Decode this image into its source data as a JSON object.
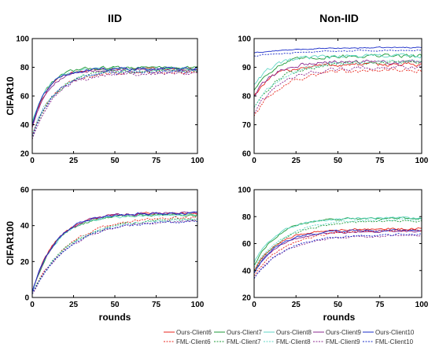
{
  "figure": {
    "col_titles": [
      "IID",
      "Non-IID"
    ],
    "row_labels": [
      "CIFAR10",
      "CIFAR100"
    ],
    "xlabel": "rounds"
  },
  "legend": {
    "entries": [
      {
        "name": "Ours-Client6",
        "color": "#e8261c",
        "dash": "solid"
      },
      {
        "name": "Ours-Client7",
        "color": "#1e9a3a",
        "dash": "solid"
      },
      {
        "name": "Ours-Client8",
        "color": "#5fd6c4",
        "dash": "solid"
      },
      {
        "name": "Ours-Client9",
        "color": "#8b2a8f",
        "dash": "solid"
      },
      {
        "name": "Ours-Client10",
        "color": "#1a2cc8",
        "dash": "solid"
      },
      {
        "name": "FML-Client6",
        "color": "#e8261c",
        "dash": "dashed"
      },
      {
        "name": "FML-Client7",
        "color": "#1e9a3a",
        "dash": "dashed"
      },
      {
        "name": "FML-Client8",
        "color": "#5fd6c4",
        "dash": "dashed"
      },
      {
        "name": "FML-Client9",
        "color": "#8b2a8f",
        "dash": "dashed"
      },
      {
        "name": "FML-Client10",
        "color": "#1a2cc8",
        "dash": "dashed"
      }
    ]
  },
  "chart_data": [
    {
      "type": "line",
      "panel": "IID / CIFAR10",
      "xlim": [
        0,
        100
      ],
      "ylim": [
        20,
        100
      ],
      "xticks": [
        0,
        25,
        50,
        75,
        100
      ],
      "yticks": [
        20,
        40,
        60,
        80,
        100
      ],
      "series": [
        {
          "name": "Ours-Client6",
          "start": 38,
          "plateau": 79,
          "tau": 9,
          "noise": 1.8
        },
        {
          "name": "Ours-Client7",
          "start": 40,
          "plateau": 80,
          "tau": 9,
          "noise": 1.8
        },
        {
          "name": "Ours-Client8",
          "start": 42,
          "plateau": 79,
          "tau": 9,
          "noise": 1.8
        },
        {
          "name": "Ours-Client9",
          "start": 38,
          "plateau": 78,
          "tau": 9,
          "noise": 1.8
        },
        {
          "name": "Ours-Client10",
          "start": 40,
          "plateau": 79,
          "tau": 9,
          "noise": 1.8
        },
        {
          "name": "FML-Client6",
          "start": 32,
          "plateau": 77,
          "tau": 13,
          "noise": 2.2
        },
        {
          "name": "FML-Client7",
          "start": 30,
          "plateau": 78,
          "tau": 13,
          "noise": 2.2
        },
        {
          "name": "FML-Client8",
          "start": 33,
          "plateau": 78,
          "tau": 13,
          "noise": 2.2
        },
        {
          "name": "FML-Client9",
          "start": 30,
          "plateau": 76,
          "tau": 13,
          "noise": 2.2
        },
        {
          "name": "FML-Client10",
          "start": 32,
          "plateau": 77,
          "tau": 13,
          "noise": 2.2
        }
      ]
    },
    {
      "type": "line",
      "panel": "Non-IID / CIFAR10",
      "xlim": [
        0,
        100
      ],
      "ylim": [
        60,
        100
      ],
      "xticks": [
        0,
        25,
        50,
        75,
        100
      ],
      "yticks": [
        60,
        70,
        80,
        90,
        100
      ],
      "series": [
        {
          "name": "Ours-Client6",
          "start": 80,
          "plateau": 91,
          "tau": 12,
          "noise": 1.2
        },
        {
          "name": "Ours-Client7",
          "start": 82,
          "plateau": 94,
          "tau": 12,
          "noise": 1.2
        },
        {
          "name": "Ours-Client8",
          "start": 84,
          "plateau": 94,
          "tau": 12,
          "noise": 1.2
        },
        {
          "name": "Ours-Client9",
          "start": 80,
          "plateau": 92,
          "tau": 12,
          "noise": 1.2
        },
        {
          "name": "Ours-Client10",
          "start": 95,
          "plateau": 97,
          "tau": 30,
          "noise": 0.35
        },
        {
          "name": "FML-Client6",
          "start": 73,
          "plateau": 89,
          "tau": 16,
          "noise": 1.3
        },
        {
          "name": "FML-Client7",
          "start": 76,
          "plateau": 92,
          "tau": 16,
          "noise": 1.3
        },
        {
          "name": "FML-Client8",
          "start": 76,
          "plateau": 92,
          "tau": 16,
          "noise": 1.3
        },
        {
          "name": "FML-Client9",
          "start": 74,
          "plateau": 90,
          "tau": 16,
          "noise": 1.3
        },
        {
          "name": "FML-Client10",
          "start": 94,
          "plateau": 96,
          "tau": 30,
          "noise": 0.35
        }
      ]
    },
    {
      "type": "line",
      "panel": "IID / CIFAR100",
      "xlim": [
        0,
        100
      ],
      "ylim": [
        0,
        60
      ],
      "xticks": [
        0,
        25,
        50,
        75,
        100
      ],
      "yticks": [
        0,
        20,
        40,
        60
      ],
      "series": [
        {
          "name": "Ours-Client6",
          "start": 3,
          "plateau": 47,
          "tau": 14,
          "noise": 1.3
        },
        {
          "name": "Ours-Client7",
          "start": 3,
          "plateau": 46,
          "tau": 14,
          "noise": 1.3
        },
        {
          "name": "Ours-Client8",
          "start": 3,
          "plateau": 46,
          "tau": 14,
          "noise": 1.3
        },
        {
          "name": "Ours-Client9",
          "start": 3,
          "plateau": 47,
          "tau": 14,
          "noise": 1.3
        },
        {
          "name": "Ours-Client10",
          "start": 3,
          "plateau": 47,
          "tau": 14,
          "noise": 1.3
        },
        {
          "name": "FML-Client6",
          "start": 2,
          "plateau": 45,
          "tau": 22,
          "noise": 1.3
        },
        {
          "name": "FML-Client7",
          "start": 2,
          "plateau": 44,
          "tau": 22,
          "noise": 1.3
        },
        {
          "name": "FML-Client8",
          "start": 2,
          "plateau": 44,
          "tau": 22,
          "noise": 1.3
        },
        {
          "name": "FML-Client9",
          "start": 2,
          "plateau": 43,
          "tau": 22,
          "noise": 1.3
        },
        {
          "name": "FML-Client10",
          "start": 2,
          "plateau": 43,
          "tau": 22,
          "noise": 1.3
        }
      ]
    },
    {
      "type": "line",
      "panel": "Non-IID / CIFAR100",
      "xlim": [
        0,
        100
      ],
      "ylim": [
        20,
        100
      ],
      "xticks": [
        0,
        25,
        50,
        75,
        100
      ],
      "yticks": [
        20,
        40,
        60,
        80,
        100
      ],
      "series": [
        {
          "name": "Ours-Client6",
          "start": 40,
          "plateau": 71,
          "tau": 14,
          "noise": 1.3
        },
        {
          "name": "Ours-Client7",
          "start": 44,
          "plateau": 79,
          "tau": 14,
          "noise": 1.3
        },
        {
          "name": "Ours-Client8",
          "start": 46,
          "plateau": 79,
          "tau": 14,
          "noise": 1.3
        },
        {
          "name": "Ours-Client9",
          "start": 38,
          "plateau": 69,
          "tau": 14,
          "noise": 1.3
        },
        {
          "name": "Ours-Client10",
          "start": 38,
          "plateau": 70,
          "tau": 14,
          "noise": 1.3
        },
        {
          "name": "FML-Client6",
          "start": 36,
          "plateau": 70,
          "tau": 18,
          "noise": 1.3
        },
        {
          "name": "FML-Client7",
          "start": 40,
          "plateau": 77,
          "tau": 18,
          "noise": 1.3
        },
        {
          "name": "FML-Client8",
          "start": 42,
          "plateau": 78,
          "tau": 18,
          "noise": 1.3
        },
        {
          "name": "FML-Client9",
          "start": 34,
          "plateau": 66,
          "tau": 18,
          "noise": 1.3
        },
        {
          "name": "FML-Client10",
          "start": 34,
          "plateau": 67,
          "tau": 18,
          "noise": 1.3
        }
      ]
    }
  ]
}
